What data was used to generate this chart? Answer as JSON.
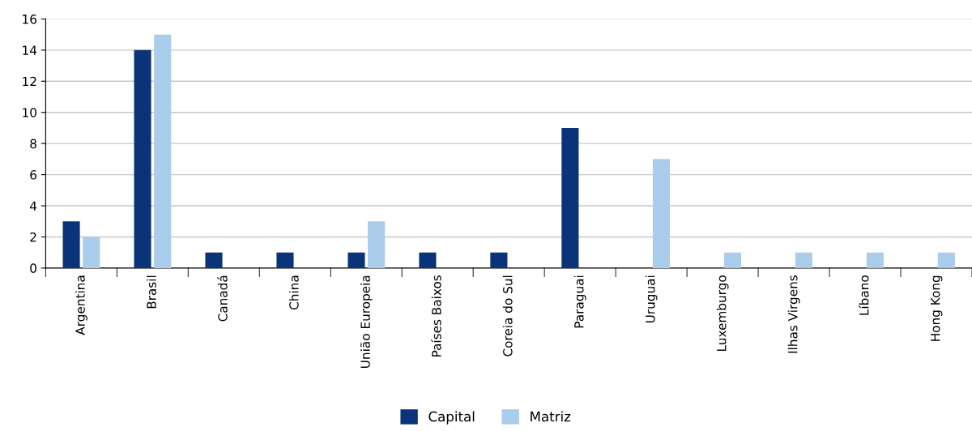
{
  "chart_data": {
    "type": "bar",
    "categories": [
      "Argentina",
      "Brasil",
      "Canadá",
      "China",
      "União Europeia",
      "Países Baixos",
      "Coreia do Sul",
      "Paraguai",
      "Uruguai",
      "Luxemburgo",
      "Ilhas Virgens",
      "Líbano",
      "Hong Kong"
    ],
    "series": [
      {
        "name": "Capital",
        "color": "#0b3379",
        "values": [
          3,
          14,
          1,
          1,
          1,
          1,
          1,
          9,
          0,
          0,
          0,
          0,
          0
        ]
      },
      {
        "name": "Matriz",
        "color": "#abcdec",
        "values": [
          2,
          15,
          0,
          0,
          3,
          0,
          0,
          0,
          7,
          1,
          1,
          1,
          1
        ]
      }
    ],
    "ylim": [
      0,
      16
    ],
    "yticks": [
      0,
      2,
      4,
      6,
      8,
      10,
      12,
      14,
      16
    ],
    "grid": "y",
    "legend": "bottom"
  }
}
